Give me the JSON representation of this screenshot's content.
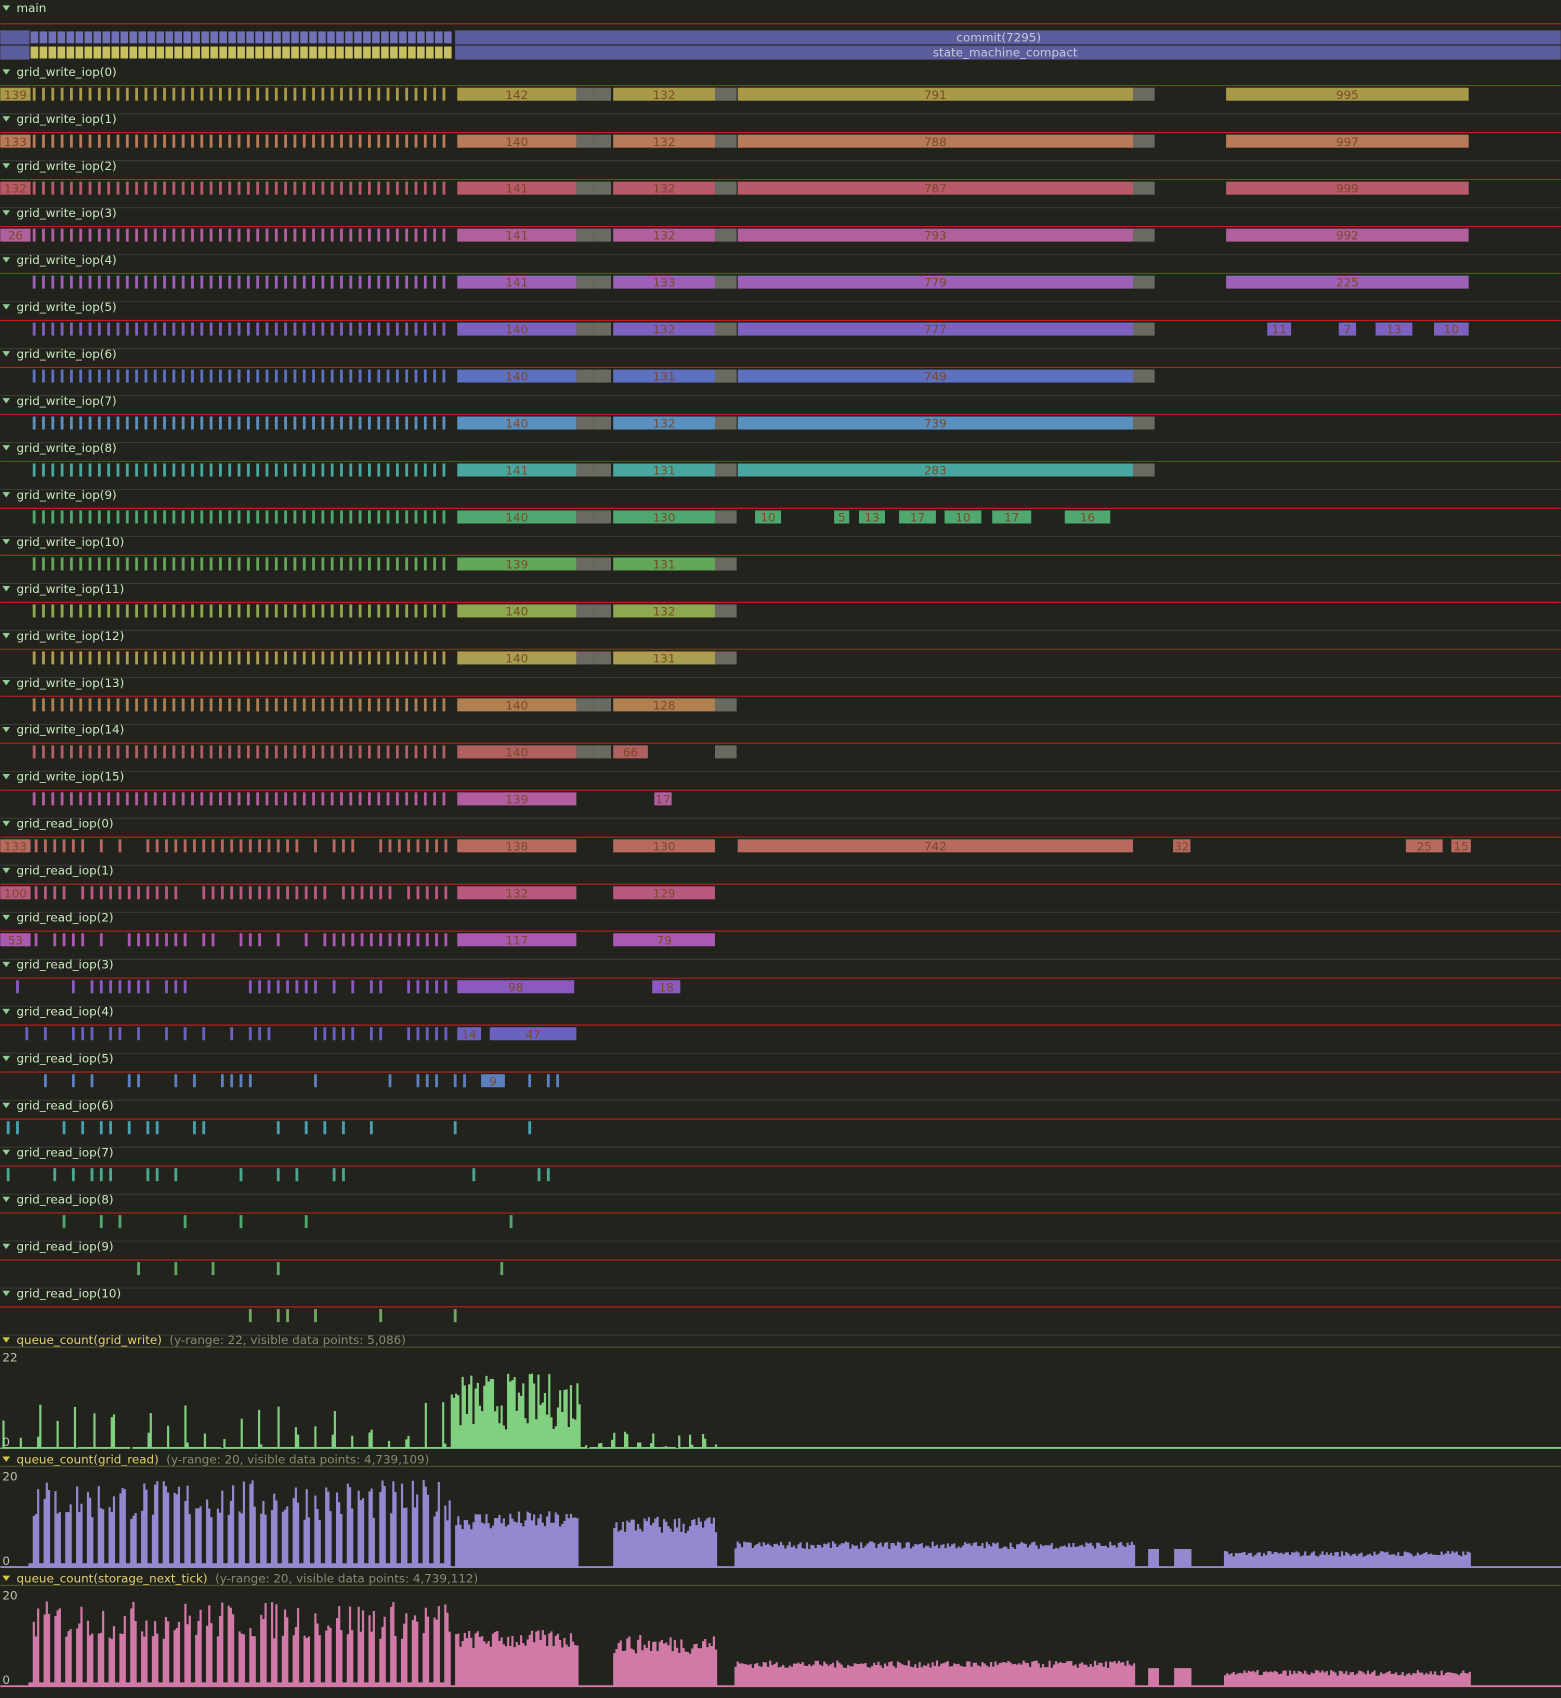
{
  "main": {
    "name": "main",
    "slices": [
      "commit(7295)",
      "state_machine_compact"
    ]
  },
  "tracks": [
    {
      "name": "grid_write_iop(0)",
      "slices": [
        "139",
        "142",
        "132",
        "791",
        "995"
      ]
    },
    {
      "name": "grid_write_iop(1)",
      "slices": [
        "133",
        "140",
        "132",
        "788",
        "997"
      ]
    },
    {
      "name": "grid_write_iop(2)",
      "slices": [
        "132",
        "141",
        "132",
        "787",
        "999"
      ]
    },
    {
      "name": "grid_write_iop(3)",
      "slices": [
        "26",
        "141",
        "132",
        "793",
        "992"
      ]
    },
    {
      "name": "grid_write_iop(4)",
      "slices": [
        "141",
        "133",
        "779",
        "225"
      ]
    },
    {
      "name": "grid_write_iop(5)",
      "slices": [
        "140",
        "132",
        "777",
        "11",
        "7",
        "13",
        "10"
      ]
    },
    {
      "name": "grid_write_iop(6)",
      "slices": [
        "140",
        "131",
        "749"
      ]
    },
    {
      "name": "grid_write_iop(7)",
      "slices": [
        "140",
        "132",
        "739"
      ]
    },
    {
      "name": "grid_write_iop(8)",
      "slices": [
        "141",
        "131",
        "283"
      ]
    },
    {
      "name": "grid_write_iop(9)",
      "slices": [
        "140",
        "130",
        "10",
        "5",
        "13",
        "17",
        "10",
        "17",
        "16"
      ]
    },
    {
      "name": "grid_write_iop(10)",
      "slices": [
        "139",
        "131"
      ]
    },
    {
      "name": "grid_write_iop(11)",
      "slices": [
        "140",
        "132"
      ]
    },
    {
      "name": "grid_write_iop(12)",
      "slices": [
        "140",
        "131"
      ]
    },
    {
      "name": "grid_write_iop(13)",
      "slices": [
        "140",
        "128"
      ]
    },
    {
      "name": "grid_write_iop(14)",
      "slices": [
        "140",
        "66"
      ]
    },
    {
      "name": "grid_write_iop(15)",
      "slices": [
        "139",
        "17"
      ]
    },
    {
      "name": "grid_read_iop(0)",
      "slices": [
        "133",
        "138",
        "130",
        "742",
        "32",
        "25",
        "15"
      ]
    },
    {
      "name": "grid_read_iop(1)",
      "slices": [
        "100",
        "132",
        "129"
      ]
    },
    {
      "name": "grid_read_iop(2)",
      "slices": [
        "53",
        "117",
        "79"
      ]
    },
    {
      "name": "grid_read_iop(3)",
      "slices": [
        "98",
        "18"
      ]
    },
    {
      "name": "grid_read_iop(4)",
      "slices": [
        "14",
        "47"
      ]
    },
    {
      "name": "grid_read_iop(5)",
      "slices": [
        "9"
      ]
    },
    {
      "name": "grid_read_iop(6)",
      "slices": []
    },
    {
      "name": "grid_read_iop(7)",
      "slices": []
    },
    {
      "name": "grid_read_iop(8)",
      "slices": []
    },
    {
      "name": "grid_read_iop(9)",
      "slices": []
    },
    {
      "name": "grid_read_iop(10)",
      "slices": []
    }
  ],
  "counters": [
    {
      "name": "queue_count(grid_write)",
      "info": "(y-range: 22, visible data points: 5,086)",
      "max": "22",
      "min": "0"
    },
    {
      "name": "queue_count(grid_read)",
      "info": "(y-range: 20, visible data points: 4,739,109)",
      "max": "20",
      "min": "0"
    },
    {
      "name": "queue_count(storage_next_tick)",
      "info": "(y-range: 20, visible data points: 4,739,112)",
      "max": "20",
      "min": "0"
    }
  ]
}
